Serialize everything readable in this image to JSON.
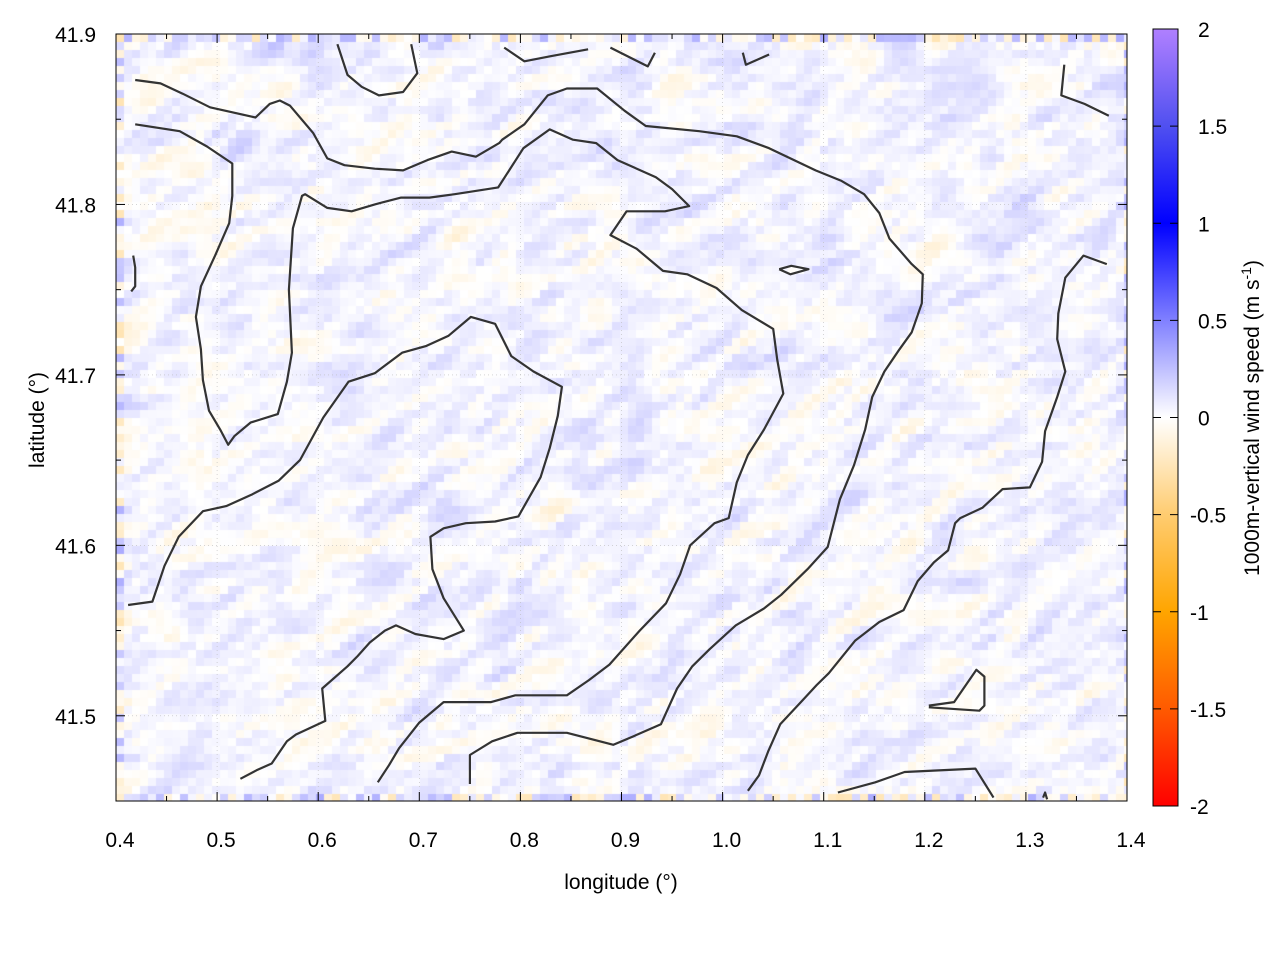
{
  "chart_data": {
    "type": "heatmap",
    "title": "",
    "xlabel": "longitude (°)",
    "ylabel": "latitude (°)",
    "xlim": [
      0.4,
      1.4
    ],
    "ylim": [
      41.45,
      41.9
    ],
    "xticks": [
      "0.4",
      "0.5",
      "0.6",
      "0.7",
      "0.8",
      "0.9",
      "1.0",
      "1.1",
      "1.2",
      "1.3",
      "1.4"
    ],
    "yticks": [
      "41.5",
      "41.6",
      "41.7",
      "41.8",
      "41.9"
    ],
    "grid": true,
    "colorbar": {
      "label": "1000m-vertical wind speed (m s",
      "label_sup": "-1",
      "label_end": ")",
      "range": [
        -2,
        2
      ],
      "ticks": [
        "2",
        "1.5",
        "1",
        "0.5",
        "0",
        "-0.5",
        "-1",
        "-1.5",
        "-2"
      ],
      "colormap": [
        {
          "value": -2,
          "color": "#ff0000"
        },
        {
          "value": -1.5,
          "color": "#ff5a00"
        },
        {
          "value": -1,
          "color": "#ffa500"
        },
        {
          "value": -0.5,
          "color": "#ffcc70"
        },
        {
          "value": 0,
          "color": "#ffffff"
        },
        {
          "value": 0.5,
          "color": "#8080ff"
        },
        {
          "value": 1,
          "color": "#0000ff"
        },
        {
          "value": 1.5,
          "color": "#5050f0"
        },
        {
          "value": 2,
          "color": "#b080ff"
        }
      ]
    },
    "field_note_range": [
      -0.4,
      0.6
    ],
    "contour_color": "#333333",
    "contours": [
      [
        [
          0.419,
          41.873
        ],
        [
          0.444,
          41.871
        ],
        [
          0.466,
          41.865
        ],
        [
          0.493,
          41.857
        ],
        [
          0.538,
          41.851
        ],
        [
          0.552,
          41.859
        ],
        [
          0.562,
          41.861
        ],
        [
          0.572,
          41.858
        ],
        [
          0.595,
          41.842
        ],
        [
          0.609,
          41.827
        ],
        [
          0.626,
          41.823
        ],
        [
          0.656,
          41.821
        ],
        [
          0.684,
          41.82
        ],
        [
          0.708,
          41.826
        ],
        [
          0.732,
          41.831
        ],
        [
          0.756,
          41.828
        ],
        [
          0.779,
          41.836
        ],
        [
          0.782,
          41.838
        ],
        [
          0.804,
          41.847
        ],
        [
          0.827,
          41.864
        ],
        [
          0.846,
          41.868
        ],
        [
          0.876,
          41.868
        ],
        [
          0.903,
          41.855
        ],
        [
          0.924,
          41.846
        ],
        [
          0.977,
          41.843
        ],
        [
          1.014,
          41.84
        ],
        [
          1.046,
          41.833
        ],
        [
          1.092,
          41.82
        ],
        [
          1.117,
          41.814
        ],
        [
          1.14,
          41.806
        ],
        [
          1.155,
          41.795
        ],
        [
          1.165,
          41.78
        ],
        [
          1.187,
          41.765
        ],
        [
          1.198,
          41.759
        ],
        [
          1.197,
          41.742
        ],
        [
          1.187,
          41.725
        ],
        [
          1.175,
          41.715
        ],
        [
          1.16,
          41.702
        ],
        [
          1.148,
          41.687
        ],
        [
          1.141,
          41.668
        ],
        [
          1.13,
          41.647
        ],
        [
          1.116,
          41.627
        ],
        [
          1.104,
          41.599
        ],
        [
          1.084,
          41.586
        ],
        [
          1.058,
          41.571
        ],
        [
          1.041,
          41.563
        ],
        [
          1.013,
          41.553
        ],
        [
          0.987,
          41.539
        ],
        [
          0.97,
          41.529
        ],
        [
          0.955,
          41.516
        ],
        [
          0.939,
          41.495
        ],
        [
          0.912,
          41.488
        ],
        [
          0.892,
          41.483
        ],
        [
          0.846,
          41.49
        ],
        [
          0.797,
          41.49
        ],
        [
          0.772,
          41.485
        ],
        [
          0.75,
          41.477
        ],
        [
          0.75,
          41.46
        ]
      ],
      [
        [
          0.419,
          41.847
        ],
        [
          0.463,
          41.843
        ],
        [
          0.49,
          41.834
        ],
        [
          0.515,
          41.824
        ],
        [
          0.515,
          41.805
        ],
        [
          0.512,
          41.789
        ],
        [
          0.498,
          41.77
        ],
        [
          0.484,
          41.752
        ],
        [
          0.479,
          41.734
        ],
        [
          0.484,
          41.715
        ],
        [
          0.486,
          41.697
        ],
        [
          0.492,
          41.679
        ],
        [
          0.503,
          41.668
        ],
        [
          0.511,
          41.659
        ],
        [
          0.517,
          41.664
        ],
        [
          0.533,
          41.672
        ],
        [
          0.56,
          41.677
        ],
        [
          0.569,
          41.696
        ],
        [
          0.574,
          41.713
        ],
        [
          0.571,
          41.75
        ],
        [
          0.575,
          41.786
        ],
        [
          0.584,
          41.805
        ],
        [
          0.587,
          41.806
        ],
        [
          0.609,
          41.798
        ],
        [
          0.633,
          41.796
        ],
        [
          0.656,
          41.8
        ],
        [
          0.682,
          41.804
        ],
        [
          0.71,
          41.804
        ],
        [
          0.735,
          41.806
        ],
        [
          0.778,
          41.81
        ],
        [
          0.803,
          41.833
        ],
        [
          0.829,
          41.844
        ],
        [
          0.852,
          41.838
        ],
        [
          0.875,
          41.836
        ],
        [
          0.896,
          41.826
        ],
        [
          0.934,
          41.816
        ],
        [
          0.95,
          41.809
        ],
        [
          0.967,
          41.799
        ],
        [
          0.943,
          41.796
        ],
        [
          0.905,
          41.796
        ],
        [
          0.889,
          41.782
        ],
        [
          0.915,
          41.774
        ],
        [
          0.941,
          41.761
        ],
        [
          0.965,
          41.759
        ],
        [
          0.994,
          41.751
        ],
        [
          1.019,
          41.738
        ],
        [
          1.05,
          41.727
        ],
        [
          1.054,
          41.709
        ],
        [
          1.06,
          41.689
        ],
        [
          1.041,
          41.668
        ],
        [
          1.025,
          41.653
        ],
        [
          1.014,
          41.637
        ],
        [
          1.006,
          41.616
        ],
        [
          0.992,
          41.613
        ],
        [
          0.968,
          41.6
        ],
        [
          0.958,
          41.583
        ],
        [
          0.944,
          41.566
        ],
        [
          0.918,
          41.55
        ],
        [
          0.888,
          41.53
        ],
        [
          0.868,
          41.521
        ],
        [
          0.846,
          41.512
        ],
        [
          0.795,
          41.512
        ],
        [
          0.771,
          41.508
        ],
        [
          0.724,
          41.508
        ],
        [
          0.7,
          41.496
        ],
        [
          0.68,
          41.481
        ],
        [
          0.67,
          41.471
        ],
        [
          0.659,
          41.461
        ]
      ],
      [
        [
          0.412,
          41.565
        ],
        [
          0.436,
          41.567
        ],
        [
          0.448,
          41.588
        ],
        [
          0.462,
          41.605
        ],
        [
          0.486,
          41.62
        ],
        [
          0.509,
          41.623
        ],
        [
          0.535,
          41.63
        ],
        [
          0.561,
          41.638
        ],
        [
          0.582,
          41.65
        ],
        [
          0.605,
          41.675
        ],
        [
          0.63,
          41.696
        ],
        [
          0.656,
          41.701
        ],
        [
          0.683,
          41.713
        ],
        [
          0.707,
          41.717
        ],
        [
          0.729,
          41.723
        ],
        [
          0.751,
          41.734
        ],
        [
          0.775,
          41.73
        ],
        [
          0.791,
          41.711
        ],
        [
          0.813,
          41.702
        ],
        [
          0.841,
          41.693
        ],
        [
          0.837,
          41.676
        ],
        [
          0.829,
          41.657
        ],
        [
          0.82,
          41.64
        ],
        [
          0.798,
          41.617
        ],
        [
          0.775,
          41.614
        ],
        [
          0.746,
          41.613
        ],
        [
          0.724,
          41.61
        ],
        [
          0.711,
          41.605
        ],
        [
          0.713,
          41.586
        ],
        [
          0.724,
          41.569
        ],
        [
          0.744,
          41.55
        ],
        [
          0.724,
          41.545
        ],
        [
          0.696,
          41.548
        ],
        [
          0.677,
          41.553
        ],
        [
          0.666,
          41.55
        ],
        [
          0.651,
          41.543
        ],
        [
          0.639,
          41.535
        ],
        [
          0.629,
          41.529
        ],
        [
          0.604,
          41.516
        ],
        [
          0.607,
          41.497
        ],
        [
          0.578,
          41.489
        ],
        [
          0.569,
          41.485
        ],
        [
          0.554,
          41.472
        ],
        [
          0.539,
          41.468
        ],
        [
          0.523,
          41.463
        ]
      ],
      [
        [
          1.025,
          41.456
        ],
        [
          1.036,
          41.465
        ],
        [
          1.045,
          41.479
        ],
        [
          1.057,
          41.495
        ],
        [
          1.079,
          41.509
        ],
        [
          1.093,
          41.518
        ],
        [
          1.105,
          41.525
        ],
        [
          1.131,
          41.544
        ],
        [
          1.155,
          41.555
        ],
        [
          1.179,
          41.562
        ],
        [
          1.193,
          41.579
        ],
        [
          1.209,
          41.59
        ],
        [
          1.223,
          41.597
        ],
        [
          1.23,
          41.613
        ],
        [
          1.235,
          41.616
        ],
        [
          1.257,
          41.622
        ],
        [
          1.277,
          41.633
        ],
        [
          1.304,
          41.634
        ],
        [
          1.316,
          41.649
        ],
        [
          1.319,
          41.667
        ],
        [
          1.331,
          41.687
        ],
        [
          1.339,
          41.702
        ],
        [
          1.331,
          41.721
        ],
        [
          1.332,
          41.736
        ],
        [
          1.339,
          41.757
        ],
        [
          1.357,
          41.77
        ],
        [
          1.38,
          41.765
        ]
      ],
      [
        [
          1.114,
          41.455
        ],
        [
          1.151,
          41.461
        ],
        [
          1.18,
          41.467
        ],
        [
          1.25,
          41.469
        ],
        [
          1.268,
          41.452
        ]
      ],
      [
        [
          1.204,
          41.506
        ],
        [
          1.229,
          41.508
        ],
        [
          1.251,
          41.527
        ],
        [
          1.259,
          41.523
        ],
        [
          1.259,
          41.506
        ],
        [
          1.254,
          41.503
        ],
        [
          1.204,
          41.505
        ]
      ],
      [
        [
          1.056,
          41.762
        ],
        [
          1.068,
          41.764
        ],
        [
          1.085,
          41.762
        ],
        [
          1.067,
          41.759
        ],
        [
          1.056,
          41.762
        ]
      ],
      [
        [
          0.619,
          41.894
        ],
        [
          0.629,
          41.876
        ],
        [
          0.643,
          41.869
        ],
        [
          0.66,
          41.864
        ],
        [
          0.684,
          41.866
        ],
        [
          0.698,
          41.877
        ],
        [
          0.692,
          41.894
        ]
      ],
      [
        [
          0.784,
          41.892
        ],
        [
          0.804,
          41.884
        ],
        [
          0.83,
          41.887
        ],
        [
          0.867,
          41.891
        ]
      ],
      [
        [
          0.889,
          41.892
        ],
        [
          0.926,
          41.881
        ],
        [
          0.933,
          41.889
        ]
      ],
      [
        [
          1.02,
          41.889
        ],
        [
          1.023,
          41.882
        ],
        [
          1.046,
          41.888
        ]
      ],
      [
        [
          1.338,
          41.882
        ],
        [
          1.335,
          41.864
        ],
        [
          1.358,
          41.859
        ],
        [
          1.382,
          41.852
        ]
      ],
      [
        [
          0.417,
          41.77
        ],
        [
          0.419,
          41.763
        ],
        [
          0.419,
          41.752
        ],
        [
          0.415,
          41.749
        ]
      ],
      [
        [
          1.317,
          41.452
        ],
        [
          1.319,
          41.455
        ],
        [
          1.321,
          41.451
        ]
      ]
    ]
  }
}
